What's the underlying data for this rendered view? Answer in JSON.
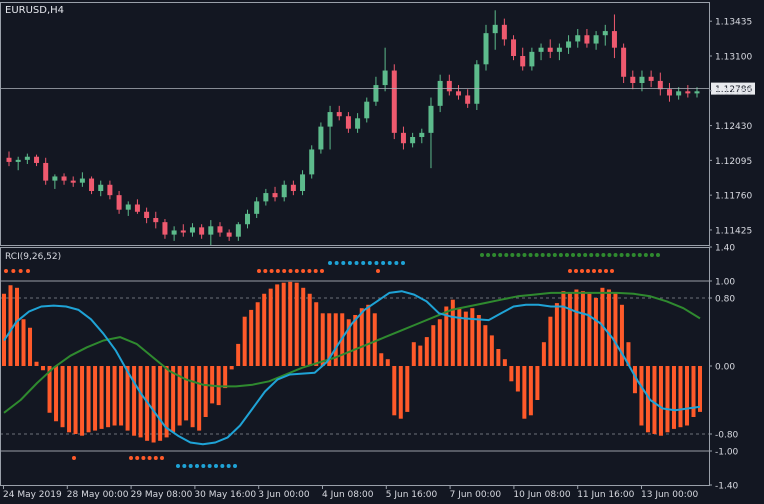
{
  "window": {
    "symbol_label": "EURUSD,H4"
  },
  "indicator": {
    "label": "RCI(9,26,52)"
  },
  "colors": {
    "background": "#131722",
    "bull": "#5dbb8c",
    "bear": "#ef5a6f",
    "histogram": "#ff5a2a",
    "rci_fast": "#1fa3d6",
    "rci_slow": "#2f8a2f",
    "dots_blue": "#1fa3d6",
    "dots_green": "#2f8a2f",
    "dots_red": "#ff5a2a",
    "grid_dash": "#8a8f99",
    "price_line": "#aeb3bb",
    "text": "#d7d9e0"
  },
  "price_axis": {
    "ticks": [
      "1.13435",
      "1.13100",
      "1.12765",
      "1.12430",
      "1.12095",
      "1.11760",
      "1.11425"
    ],
    "current_price": "1.12786"
  },
  "indicator_axis": {
    "ticks": [
      "1.40",
      "1.00",
      "0.80",
      "0.00",
      "-0.80",
      "-1.00",
      "-1.40"
    ]
  },
  "time_axis": {
    "labels": [
      "24 May 2019",
      "28 May 00:00",
      "29 May 08:00",
      "30 May 16:00",
      "3 Jun 00:00",
      "4 Jun 08:00",
      "5 Jun 16:00",
      "7 Jun 00:00",
      "10 Jun 08:00",
      "11 Jun 16:00",
      "13 Jun 00:00"
    ]
  },
  "chart_data": [
    {
      "type": "candlestick",
      "title": "EURUSD,H4",
      "ylim": [
        1.1128,
        1.1362
      ],
      "current_price": 1.12786,
      "candles": [
        [
          1.1212,
          1.1218,
          1.1204,
          1.1208
        ],
        [
          1.1208,
          1.1213,
          1.12,
          1.121
        ],
        [
          1.121,
          1.1216,
          1.1206,
          1.1213
        ],
        [
          1.1213,
          1.1215,
          1.1204,
          1.1207
        ],
        [
          1.1207,
          1.1212,
          1.1186,
          1.119
        ],
        [
          1.119,
          1.1196,
          1.1182,
          1.1194
        ],
        [
          1.1194,
          1.1197,
          1.1186,
          1.119
        ],
        [
          1.119,
          1.1194,
          1.1184,
          1.1188
        ],
        [
          1.1188,
          1.1198,
          1.1184,
          1.1192
        ],
        [
          1.1192,
          1.1194,
          1.1177,
          1.118
        ],
        [
          1.118,
          1.119,
          1.1175,
          1.1186
        ],
        [
          1.1186,
          1.119,
          1.1172,
          1.1176
        ],
        [
          1.1176,
          1.118,
          1.1158,
          1.1162
        ],
        [
          1.1162,
          1.117,
          1.1156,
          1.1167
        ],
        [
          1.1167,
          1.1172,
          1.1158,
          1.116
        ],
        [
          1.116,
          1.1164,
          1.1149,
          1.1154
        ],
        [
          1.1154,
          1.116,
          1.1144,
          1.115
        ],
        [
          1.115,
          1.1153,
          1.1134,
          1.1138
        ],
        [
          1.1138,
          1.1146,
          1.1132,
          1.1142
        ],
        [
          1.1142,
          1.1148,
          1.1136,
          1.114
        ],
        [
          1.114,
          1.1149,
          1.1136,
          1.1145
        ],
        [
          1.1145,
          1.1148,
          1.1134,
          1.1138
        ],
        [
          1.1138,
          1.1152,
          1.1128,
          1.1146
        ],
        [
          1.1146,
          1.115,
          1.1136,
          1.114
        ],
        [
          1.114,
          1.1143,
          1.1132,
          1.1136
        ],
        [
          1.1136,
          1.115,
          1.1132,
          1.1148
        ],
        [
          1.1148,
          1.1162,
          1.1144,
          1.1158
        ],
        [
          1.1158,
          1.1174,
          1.1154,
          1.117
        ],
        [
          1.117,
          1.1182,
          1.1166,
          1.1178
        ],
        [
          1.1178,
          1.1184,
          1.117,
          1.1174
        ],
        [
          1.1174,
          1.119,
          1.117,
          1.1186
        ],
        [
          1.1186,
          1.119,
          1.1176,
          1.118
        ],
        [
          1.118,
          1.12,
          1.1176,
          1.1196
        ],
        [
          1.1196,
          1.1224,
          1.1192,
          1.122
        ],
        [
          1.122,
          1.1246,
          1.1216,
          1.1242
        ],
        [
          1.1242,
          1.1262,
          1.122,
          1.1256
        ],
        [
          1.1256,
          1.1262,
          1.1248,
          1.1252
        ],
        [
          1.1252,
          1.1256,
          1.1236,
          1.124
        ],
        [
          1.124,
          1.1255,
          1.1236,
          1.125
        ],
        [
          1.125,
          1.127,
          1.1246,
          1.1266
        ],
        [
          1.1266,
          1.129,
          1.1262,
          1.1282
        ],
        [
          1.1282,
          1.1318,
          1.1276,
          1.1296
        ],
        [
          1.1296,
          1.1302,
          1.123,
          1.1236
        ],
        [
          1.1236,
          1.1242,
          1.122,
          1.1226
        ],
        [
          1.1226,
          1.1236,
          1.1222,
          1.1232
        ],
        [
          1.1232,
          1.124,
          1.1226,
          1.1236
        ],
        [
          1.1236,
          1.127,
          1.1202,
          1.1262
        ],
        [
          1.1262,
          1.1292,
          1.1256,
          1.1286
        ],
        [
          1.1286,
          1.1292,
          1.1272,
          1.1276
        ],
        [
          1.1276,
          1.1282,
          1.1268,
          1.1272
        ],
        [
          1.1272,
          1.1278,
          1.126,
          1.1264
        ],
        [
          1.1264,
          1.1306,
          1.1258,
          1.1302
        ],
        [
          1.1302,
          1.134,
          1.1296,
          1.1332
        ],
        [
          1.1332,
          1.1354,
          1.1316,
          1.134
        ],
        [
          1.134,
          1.1346,
          1.132,
          1.1326
        ],
        [
          1.1326,
          1.133,
          1.1306,
          1.131
        ],
        [
          1.131,
          1.1318,
          1.1296,
          1.13
        ],
        [
          1.13,
          1.1318,
          1.1296,
          1.1314
        ],
        [
          1.1314,
          1.1322,
          1.1306,
          1.1318
        ],
        [
          1.1318,
          1.1326,
          1.1308,
          1.1314
        ],
        [
          1.1314,
          1.1322,
          1.1306,
          1.1318
        ],
        [
          1.1318,
          1.133,
          1.1312,
          1.1324
        ],
        [
          1.1324,
          1.1336,
          1.1318,
          1.133
        ],
        [
          1.133,
          1.1336,
          1.1318,
          1.1322
        ],
        [
          1.1322,
          1.1334,
          1.1316,
          1.133
        ],
        [
          1.133,
          1.134,
          1.132,
          1.1334
        ],
        [
          1.1334,
          1.135,
          1.1308,
          1.1318
        ],
        [
          1.1318,
          1.1322,
          1.1284,
          1.129
        ],
        [
          1.129,
          1.1296,
          1.1278,
          1.1284
        ],
        [
          1.1284,
          1.1296,
          1.1276,
          1.129
        ],
        [
          1.129,
          1.1296,
          1.128,
          1.1286
        ],
        [
          1.1286,
          1.1294,
          1.1272,
          1.1278
        ],
        [
          1.1278,
          1.1284,
          1.1266,
          1.1272
        ],
        [
          1.1272,
          1.128,
          1.1268,
          1.1276
        ],
        [
          1.1276,
          1.1282,
          1.127,
          1.1274
        ],
        [
          1.1274,
          1.128,
          1.127,
          1.1276
        ]
      ]
    },
    {
      "type": "histogram+line",
      "title": "RCI(9,26,52)",
      "ylim": [
        -1.4,
        1.4
      ],
      "levels": [
        1.0,
        0.8,
        -0.8,
        -1.0
      ],
      "series": [
        {
          "name": "RCI(9)",
          "kind": "histogram",
          "values": [
            0.85,
            0.95,
            0.92,
            0.55,
            0.45,
            0.05,
            -0.05,
            -0.55,
            -0.65,
            -0.72,
            -0.78,
            -0.8,
            -0.82,
            -0.78,
            -0.76,
            -0.74,
            -0.72,
            -0.7,
            -0.7,
            -0.76,
            -0.82,
            -0.84,
            -0.88,
            -0.9,
            -0.88,
            -0.84,
            -0.78,
            -0.7,
            -0.64,
            -0.72,
            -0.76,
            -0.6,
            -0.44,
            -0.46,
            -0.26,
            -0.04,
            0.26,
            0.58,
            0.66,
            0.75,
            0.85,
            0.91,
            0.96,
            0.98,
            0.99,
            0.98,
            0.92,
            0.85,
            0.75,
            0.62,
            0.62,
            0.62,
            0.62,
            0.55,
            0.6,
            0.68,
            0.72,
            0.62,
            0.15,
            0.08,
            -0.58,
            -0.62,
            -0.54,
            0.28,
            0.24,
            0.34,
            0.48,
            0.55,
            0.7,
            0.78,
            0.68,
            0.64,
            0.68,
            0.6,
            0.48,
            0.36,
            0.2,
            0.08,
            -0.18,
            -0.3,
            -0.62,
            -0.58,
            -0.4,
            0.28,
            0.58,
            0.74,
            0.88,
            0.86,
            0.9,
            0.88,
            0.85,
            0.8,
            0.92,
            0.9,
            0.86,
            0.72,
            0.28,
            -0.32,
            -0.7,
            -0.78,
            -0.8,
            -0.82,
            -0.78,
            -0.74,
            -0.72,
            -0.7,
            -0.6,
            -0.54
          ]
        },
        {
          "name": "RCI(26)",
          "kind": "line",
          "values": [
            0.3,
            0.52,
            0.64,
            0.7,
            0.71,
            0.7,
            0.66,
            0.55,
            0.38,
            0.18,
            -0.08,
            -0.32,
            -0.52,
            -0.72,
            -0.82,
            -0.9,
            -0.92,
            -0.9,
            -0.84,
            -0.7,
            -0.5,
            -0.3,
            -0.16,
            -0.1,
            -0.09,
            -0.08,
            0.05,
            0.28,
            0.5,
            0.66,
            0.76,
            0.86,
            0.88,
            0.84,
            0.76,
            0.62,
            0.58,
            0.56,
            0.55,
            0.54,
            0.62,
            0.7,
            0.72,
            0.72,
            0.7,
            0.7,
            0.64,
            0.6,
            0.5,
            0.32,
            0.08,
            -0.18,
            -0.4,
            -0.5,
            -0.52,
            -0.5,
            -0.48
          ]
        },
        {
          "name": "RCI(52)",
          "kind": "line",
          "values": [
            -0.55,
            -0.4,
            -0.2,
            -0.02,
            0.12,
            0.22,
            0.3,
            0.34,
            0.26,
            0.1,
            -0.06,
            -0.16,
            -0.22,
            -0.24,
            -0.24,
            -0.22,
            -0.18,
            -0.1,
            -0.02,
            0.04,
            0.1,
            0.18,
            0.26,
            0.34,
            0.42,
            0.5,
            0.58,
            0.66,
            0.7,
            0.74,
            0.78,
            0.82,
            0.84,
            0.86,
            0.86,
            0.86,
            0.86,
            0.86,
            0.85,
            0.82,
            0.76,
            0.68,
            0.56
          ]
        }
      ]
    }
  ]
}
